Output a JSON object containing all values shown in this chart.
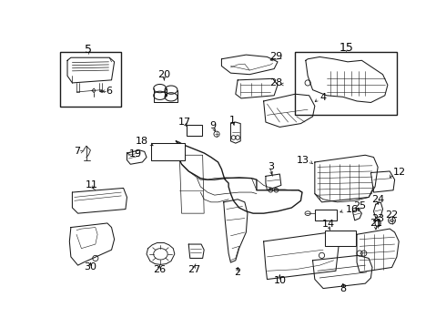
{
  "bg_color": "#ffffff",
  "fg_color": "#000000",
  "fig_width": 4.9,
  "fig_height": 3.6,
  "dpi": 100,
  "lcolor": "#1a1a1a",
  "lw": 0.75,
  "label_fontsize": 7.5
}
